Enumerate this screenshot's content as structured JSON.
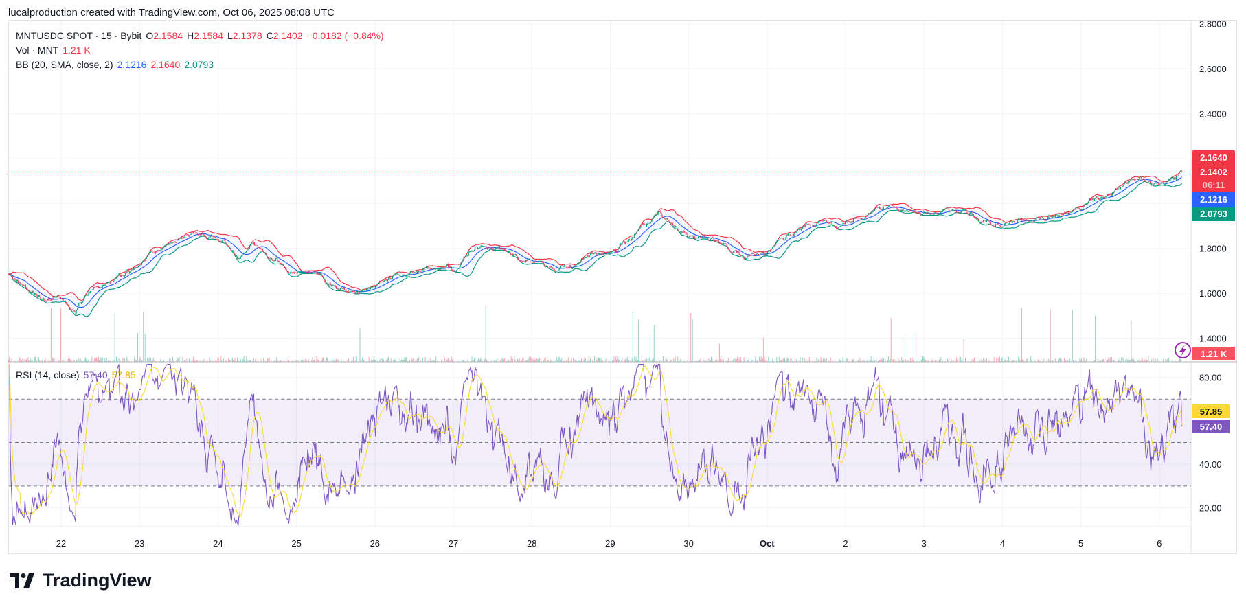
{
  "header": {
    "attribution": "lucalproduction created with TradingView.com, Oct 06, 2025 08:08 UTC"
  },
  "legend": {
    "symbol": "MNTUSDC SPOT · 15 · Bybit",
    "o_label": "O",
    "o": "2.1584",
    "h_label": "H",
    "h": "2.1584",
    "l_label": "L",
    "l": "2.1378",
    "c_label": "C",
    "c": "2.1402",
    "change": "−0.0182 (−0.84%)",
    "vol_label": "Vol · MNT",
    "vol": "1.21 K",
    "bb_label": "BB (20, SMA, close, 2)",
    "bb_basis": "2.1216",
    "bb_upper": "2.1640",
    "bb_lower": "2.0793",
    "rsi_label": "RSI (14, close)",
    "rsi": "57.40",
    "rsi_ma": "57.85"
  },
  "price_axis": {
    "upper_badge": "2.1640",
    "last_badge": "2.1402",
    "countdown": "06:11",
    "basis_badge": "2.1216",
    "lower_badge": "2.0793",
    "volume_badge": "1.21 K",
    "rsi_ma_badge": "57.85",
    "rsi_badge": "57.40"
  },
  "colors": {
    "up": "#089981",
    "down": "#f23645",
    "basis": "#2962ff",
    "upper": "#f23645",
    "lower": "#089981",
    "rsi": "#7e57c2",
    "rsi_ma": "#fdd835"
  },
  "chart_data": {
    "type": "candlestick",
    "symbol": "MNTUSDC",
    "interval_minutes": 15,
    "price_ticks": [
      "2.8000",
      "2.6000",
      "2.4000",
      "1.8000",
      "1.6000",
      "1.4000"
    ],
    "price_ylim": [
      1.4,
      2.8
    ],
    "rsi_ticks": [
      "80.00",
      "40.00",
      "20.00"
    ],
    "rsi_levels": [
      70,
      50,
      30
    ],
    "x_tick_labels": [
      "22",
      "23",
      "24",
      "25",
      "26",
      "27",
      "28",
      "29",
      "30",
      "Oct",
      "2",
      "3",
      "4",
      "5",
      "6"
    ],
    "x_range_days_from_sep22": [
      -0.67,
      14.3
    ],
    "basis_anchor_points_day_price": [
      [
        -0.67,
        1.685
      ],
      [
        -0.37,
        1.59
      ],
      [
        0,
        1.57
      ],
      [
        0.18,
        1.51
      ],
      [
        0.44,
        1.63
      ],
      [
        0.74,
        1.69
      ],
      [
        1,
        1.74
      ],
      [
        1.25,
        1.79
      ],
      [
        1.5,
        1.84
      ],
      [
        1.7,
        1.87
      ],
      [
        2,
        1.83
      ],
      [
        2.26,
        1.77
      ],
      [
        2.41,
        1.83
      ],
      [
        2.72,
        1.75
      ],
      [
        3,
        1.7
      ],
      [
        3.27,
        1.67
      ],
      [
        3.47,
        1.62
      ],
      [
        3.73,
        1.6
      ],
      [
        4,
        1.62
      ],
      [
        4.28,
        1.68
      ],
      [
        4.69,
        1.7
      ],
      [
        5,
        1.71
      ],
      [
        5.3,
        1.81
      ],
      [
        5.7,
        1.78
      ],
      [
        6,
        1.74
      ],
      [
        6.31,
        1.72
      ],
      [
        6.72,
        1.77
      ],
      [
        7,
        1.78
      ],
      [
        7.33,
        1.86
      ],
      [
        7.63,
        1.93
      ],
      [
        8,
        1.86
      ],
      [
        8.24,
        1.84
      ],
      [
        8.44,
        1.83
      ],
      [
        8.69,
        1.77
      ],
      [
        8.95,
        1.78
      ],
      [
        9.2,
        1.83
      ],
      [
        9.55,
        1.9
      ],
      [
        10,
        1.92
      ],
      [
        10.36,
        1.97
      ],
      [
        10.67,
        1.98
      ],
      [
        11,
        1.96
      ],
      [
        11.34,
        1.96
      ],
      [
        11.64,
        1.94
      ],
      [
        12,
        1.92
      ],
      [
        12.36,
        1.94
      ],
      [
        12.77,
        1.96
      ],
      [
        13,
        1.98
      ],
      [
        13.39,
        2.06
      ],
      [
        13.69,
        2.1
      ],
      [
        14,
        2.1
      ],
      [
        14.3,
        2.14
      ]
    ],
    "last": {
      "open": 2.1584,
      "high": 2.1584,
      "low": 2.1378,
      "close": 2.1402,
      "volume_k": 1.21
    },
    "bollinger": {
      "length": 20,
      "mult": 2,
      "basis": 2.1216,
      "upper": 2.164,
      "lower": 2.0793
    },
    "rsi": {
      "length": 14,
      "value": 57.4,
      "ma": 57.85
    }
  },
  "footer": {
    "brand": "TradingView"
  }
}
